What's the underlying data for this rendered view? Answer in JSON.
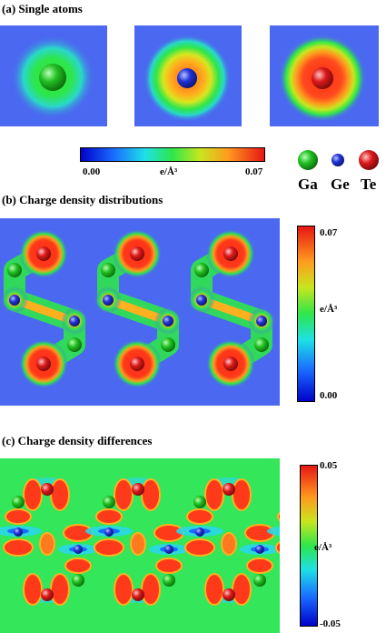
{
  "panel_a": {
    "title": "(a) Single atoms",
    "colorbar": {
      "min": "0.00",
      "unit": "e/Å³",
      "max": "0.07"
    },
    "legend": [
      {
        "label": "Ga",
        "color": "#1fb51f"
      },
      {
        "label": "Ge",
        "color": "#1a2bcc"
      },
      {
        "label": "Te",
        "color": "#d61414"
      }
    ]
  },
  "panel_b": {
    "title": "(b) Charge density distributions",
    "colorbar": {
      "max": "0.07",
      "unit": "e/Å³",
      "min": "0.00"
    }
  },
  "panel_c": {
    "title": "(c) Charge density differences",
    "colorbar": {
      "max": "0.05",
      "unit": "e/Å³",
      "min": "-0.05"
    }
  },
  "colors": {
    "background_blue": "#4a69f0",
    "ga": "#1fb51f",
    "ge": "#1a2bcc",
    "te": "#d61414",
    "diff_background": "#33e65a"
  }
}
